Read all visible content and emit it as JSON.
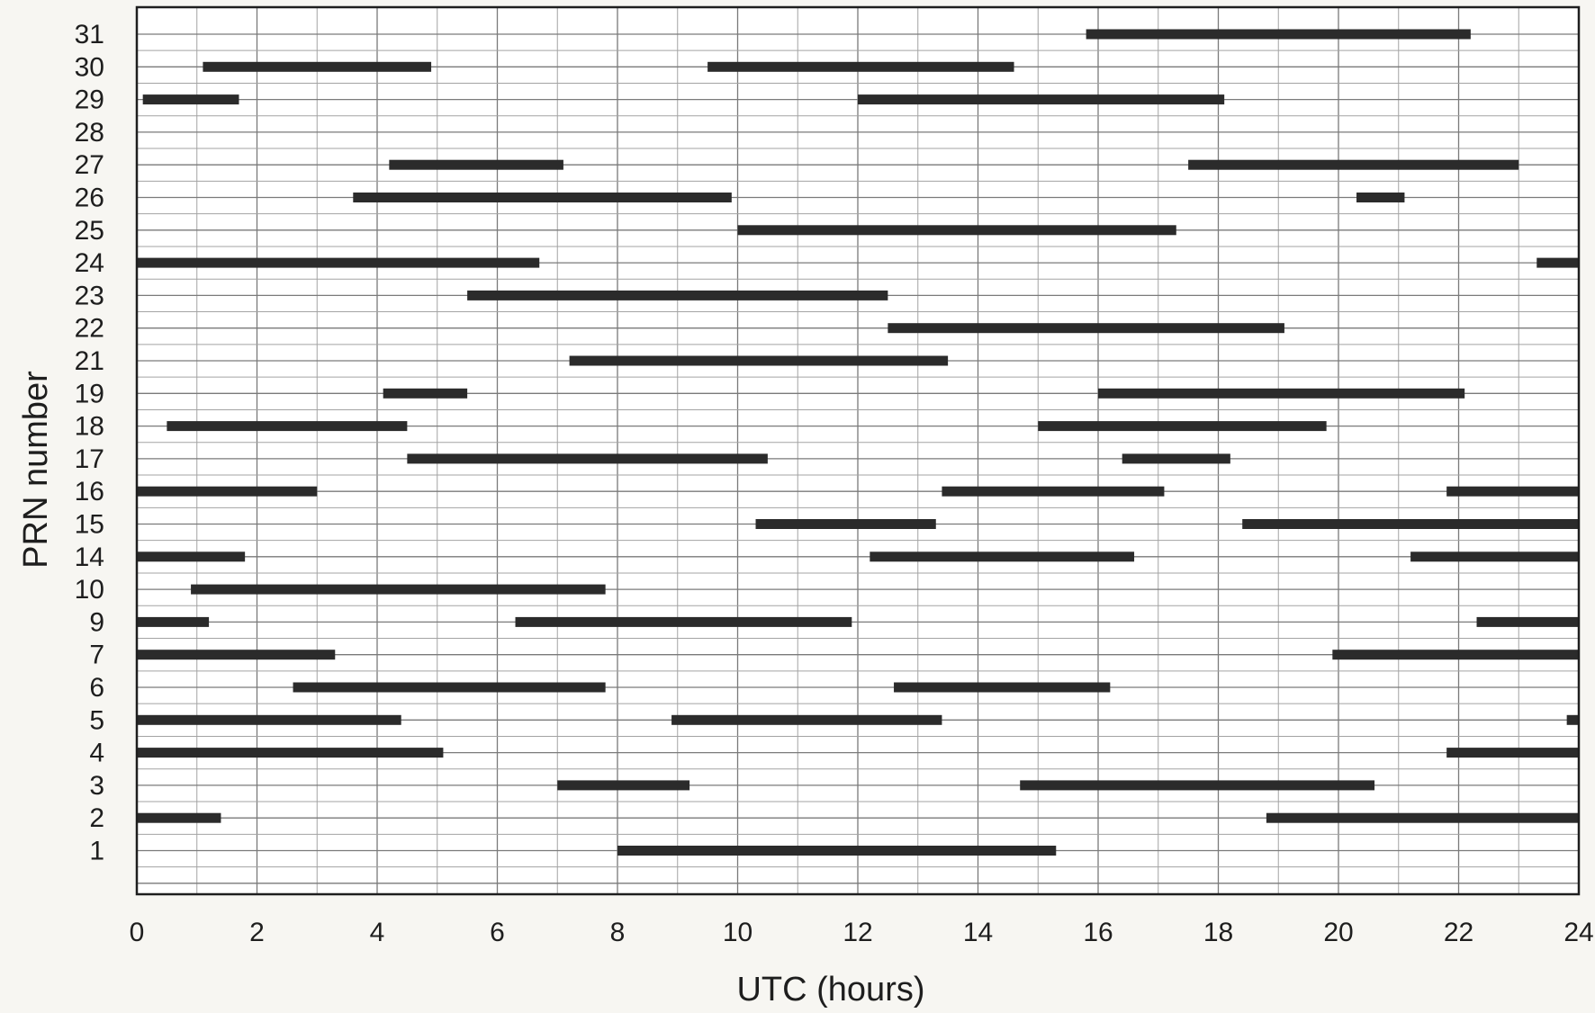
{
  "chart_data": {
    "type": "bar",
    "orientation": "horizontal-timeline",
    "title": "",
    "xlabel": "UTC (hours)",
    "ylabel": "PRN number",
    "xlim": [
      0,
      24
    ],
    "xticks": [
      0,
      2,
      4,
      6,
      8,
      10,
      12,
      14,
      16,
      18,
      20,
      22,
      24
    ],
    "grid": true,
    "legend": "none",
    "bar_color": "#2b2b2b",
    "categories": [
      "31",
      "30",
      "29",
      "28",
      "27",
      "26",
      "25",
      "24",
      "23",
      "22",
      "21",
      "19",
      "18",
      "17",
      "16",
      "15",
      "14",
      "10",
      "9",
      "7",
      "6",
      "5",
      "4",
      "3",
      "2",
      "1"
    ],
    "series": [
      {
        "prn": "31",
        "intervals": [
          [
            15.8,
            22.2
          ]
        ]
      },
      {
        "prn": "30",
        "intervals": [
          [
            1.1,
            4.9
          ],
          [
            9.5,
            14.6
          ]
        ]
      },
      {
        "prn": "29",
        "intervals": [
          [
            0.1,
            1.7
          ],
          [
            12.0,
            18.1
          ]
        ]
      },
      {
        "prn": "28",
        "intervals": []
      },
      {
        "prn": "27",
        "intervals": [
          [
            4.2,
            7.1
          ],
          [
            17.5,
            23.0
          ]
        ]
      },
      {
        "prn": "26",
        "intervals": [
          [
            3.6,
            9.9
          ],
          [
            20.3,
            21.1
          ]
        ]
      },
      {
        "prn": "25",
        "intervals": [
          [
            10.0,
            17.3
          ]
        ]
      },
      {
        "prn": "24",
        "intervals": [
          [
            0.0,
            6.7
          ],
          [
            23.3,
            24.0
          ]
        ]
      },
      {
        "prn": "23",
        "intervals": [
          [
            5.5,
            12.5
          ]
        ]
      },
      {
        "prn": "22",
        "intervals": [
          [
            12.5,
            19.1
          ]
        ]
      },
      {
        "prn": "21",
        "intervals": [
          [
            7.2,
            13.5
          ]
        ]
      },
      {
        "prn": "19",
        "intervals": [
          [
            4.1,
            5.5
          ],
          [
            16.0,
            22.1
          ]
        ]
      },
      {
        "prn": "18",
        "intervals": [
          [
            0.5,
            4.5
          ],
          [
            15.0,
            19.8
          ]
        ]
      },
      {
        "prn": "17",
        "intervals": [
          [
            4.5,
            10.5
          ],
          [
            16.4,
            18.2
          ]
        ]
      },
      {
        "prn": "16",
        "intervals": [
          [
            0.0,
            3.0
          ],
          [
            13.4,
            17.1
          ],
          [
            21.8,
            24.0
          ]
        ]
      },
      {
        "prn": "15",
        "intervals": [
          [
            10.3,
            13.3
          ],
          [
            18.4,
            24.0
          ]
        ]
      },
      {
        "prn": "14",
        "intervals": [
          [
            0.0,
            1.8
          ],
          [
            12.2,
            16.6
          ],
          [
            21.2,
            24.0
          ]
        ]
      },
      {
        "prn": "10",
        "intervals": [
          [
            0.9,
            7.8
          ]
        ]
      },
      {
        "prn": "9",
        "intervals": [
          [
            0.0,
            1.2
          ],
          [
            6.3,
            11.9
          ],
          [
            22.3,
            24.0
          ]
        ]
      },
      {
        "prn": "7",
        "intervals": [
          [
            0.0,
            3.3
          ],
          [
            19.9,
            24.0
          ]
        ]
      },
      {
        "prn": "6",
        "intervals": [
          [
            2.6,
            7.8
          ],
          [
            12.6,
            16.2
          ]
        ]
      },
      {
        "prn": "5",
        "intervals": [
          [
            0.0,
            4.4
          ],
          [
            8.9,
            13.4
          ],
          [
            23.8,
            24.0
          ]
        ]
      },
      {
        "prn": "4",
        "intervals": [
          [
            0.0,
            5.1
          ],
          [
            21.8,
            24.0
          ]
        ]
      },
      {
        "prn": "3",
        "intervals": [
          [
            7.0,
            9.2
          ],
          [
            14.7,
            20.6
          ]
        ]
      },
      {
        "prn": "2",
        "intervals": [
          [
            0.0,
            1.4
          ],
          [
            18.8,
            24.0
          ]
        ]
      },
      {
        "prn": "1",
        "intervals": [
          [
            8.0,
            15.3
          ]
        ]
      }
    ]
  }
}
